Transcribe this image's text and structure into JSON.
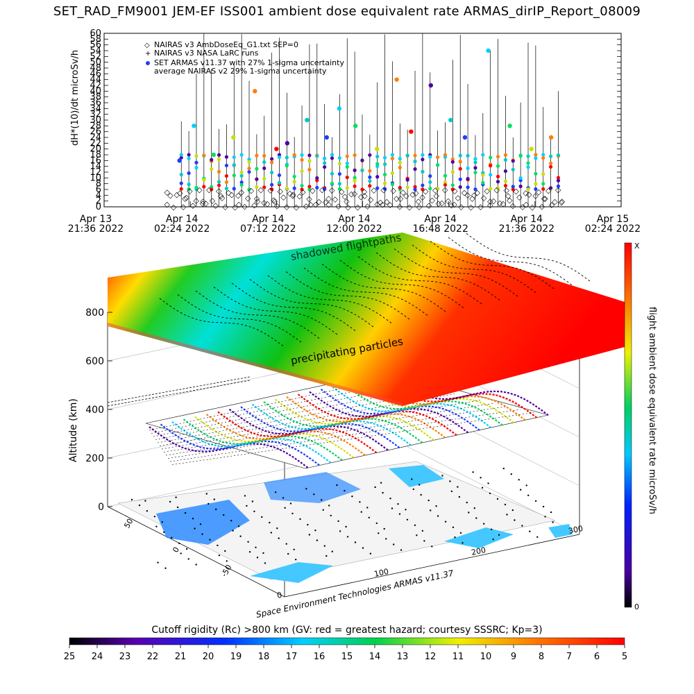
{
  "title": "SET_RAD_FM9001  JEM-EF ISS001 ambient dose equivalent rate ARMAS_dirIP_Report_08009",
  "chart_data": [
    {
      "type": "scatter",
      "ylabel": "dH*(10)/dt microSv/h",
      "ylim": [
        0,
        60
      ],
      "y_ticks": [
        0,
        2,
        4,
        6,
        8,
        10,
        12,
        14,
        16,
        18,
        20,
        22,
        24,
        26,
        28,
        30,
        32,
        34,
        36,
        38,
        40,
        42,
        44,
        46,
        48,
        50,
        52,
        54,
        56,
        58,
        60
      ],
      "x_ticks": [
        {
          "l1": "Apr 13",
          "l2": "21:36 2022"
        },
        {
          "l1": "Apr 14",
          "l2": "02:24 2022"
        },
        {
          "l1": "Apr 14",
          "l2": "07:12 2022"
        },
        {
          "l1": "Apr 14",
          "l2": "12:00 2022"
        },
        {
          "l1": "Apr 14",
          "l2": "16:48 2022"
        },
        {
          "l1": "Apr 14",
          "l2": "21:36 2022"
        },
        {
          "l1": "Apr 15",
          "l2": "02:24 2022"
        }
      ],
      "legend": [
        "NAIRAS v3 AmbDoseEq_G1.txt SEP=0",
        "NAIRAS v3 NASA LaRC runs",
        "SET ARMAS v11.37 with 27% 1-sigma uncertainty",
        "average NAIRAS v2 29% 1-sigma uncertainty"
      ],
      "legend_position": "top-left",
      "series": [
        {
          "name": "NAIRAS v3 AmbDoseEq_G1.txt SEP=0",
          "marker": "diamond",
          "color": "#000000",
          "x_hours_from_2136": [
            3.5,
            4.5,
            5.5,
            6.5,
            7.5,
            8.5,
            9.5,
            10.5,
            11.5,
            12.5,
            13.5,
            14.5,
            15.5,
            16.5,
            17.5,
            18.5,
            19.5,
            20.5,
            21.5,
            22.5,
            23.5,
            24.5,
            25.5
          ],
          "values": [
            1,
            3,
            2,
            4,
            1,
            3,
            2,
            4,
            1,
            3,
            2,
            4,
            1,
            3,
            2,
            4,
            1,
            3,
            2,
            4,
            1,
            3,
            2
          ]
        },
        {
          "name": "SET ARMAS v11.37 with 27% 1-sigma uncertainty",
          "marker": "circle",
          "color": "#1f3cff",
          "x_hours_from_2136": [
            4.2,
            5.0,
            6.1,
            7.2,
            8.4,
            9.6,
            10.2,
            11.3,
            12.4,
            13.1,
            14.0,
            15.2,
            16.3,
            17.1,
            18.2,
            19.3,
            20.1,
            21.4,
            22.6,
            23.8,
            24.9
          ],
          "values": [
            16,
            28,
            18,
            24,
            40,
            20,
            22,
            30,
            24,
            34,
            28,
            20,
            44,
            26,
            42,
            30,
            24,
            54,
            28,
            20,
            24
          ]
        }
      ]
    },
    {
      "type": "heatmap",
      "zlabel": "Altitude (km)",
      "z_ticks": [
        0,
        200,
        400,
        600,
        800
      ],
      "lat_ticks": [
        50,
        0,
        -50
      ],
      "lon_ticks": [
        0,
        100,
        200,
        300
      ],
      "annotations": [
        "shadowed flightpaths",
        "precipitating particles"
      ],
      "credit": "Space Environment Technologies ARMAS v11.37",
      "colorbar_title": "flight ambient dose equivalent rate microSv/h",
      "colorbar_top": "X",
      "colorbar_bottom": "0",
      "colors": {
        "max": "#ff0000",
        "min": "#000000"
      }
    },
    {
      "type": "heatmap",
      "title": "Cutoff rigidity (Rc) >800 km (GV: red = greatest hazard; courtesy SSSRC; Kp=3)",
      "ticks": [
        25,
        24,
        23,
        22,
        21,
        20,
        19,
        18,
        17,
        16,
        15,
        14,
        13,
        12,
        11,
        10,
        9,
        8,
        7,
        6,
        5
      ]
    }
  ]
}
